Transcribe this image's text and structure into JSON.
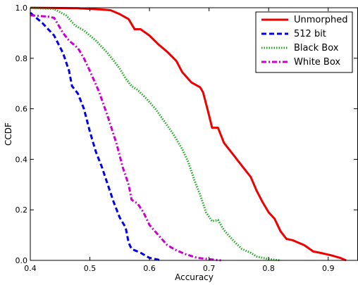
{
  "chart_data": {
    "type": "line",
    "title": "",
    "xlabel": "Accuracy",
    "ylabel": "CCDF",
    "xlim": [
      0.4,
      0.95
    ],
    "ylim": [
      0.0,
      1.0
    ],
    "xticks": [
      0.4,
      0.5,
      0.6,
      0.7,
      0.8,
      0.9
    ],
    "yticks": [
      0.0,
      0.2,
      0.4,
      0.6,
      0.8,
      1.0
    ],
    "xtick_labels": [
      "0.4",
      "0.5",
      "0.6",
      "0.7",
      "0.8",
      "0.9"
    ],
    "ytick_labels": [
      "0.0",
      "0.2",
      "0.4",
      "0.6",
      "0.8",
      "1.0"
    ],
    "grid": false,
    "legend_position": "top-right",
    "series": [
      {
        "name": "Unmorphed",
        "color": "#ee0000",
        "dash": "solid",
        "points": [
          [
            0.4,
            1.0
          ],
          [
            0.48,
            0.998
          ],
          [
            0.52,
            0.993
          ],
          [
            0.535,
            0.99
          ],
          [
            0.55,
            0.975
          ],
          [
            0.565,
            0.955
          ],
          [
            0.575,
            0.915
          ],
          [
            0.585,
            0.915
          ],
          [
            0.6,
            0.89
          ],
          [
            0.615,
            0.855
          ],
          [
            0.63,
            0.825
          ],
          [
            0.645,
            0.79
          ],
          [
            0.655,
            0.745
          ],
          [
            0.67,
            0.705
          ],
          [
            0.685,
            0.685
          ],
          [
            0.69,
            0.665
          ],
          [
            0.7,
            0.575
          ],
          [
            0.705,
            0.525
          ],
          [
            0.715,
            0.525
          ],
          [
            0.725,
            0.465
          ],
          [
            0.74,
            0.42
          ],
          [
            0.755,
            0.375
          ],
          [
            0.77,
            0.33
          ],
          [
            0.78,
            0.275
          ],
          [
            0.79,
            0.23
          ],
          [
            0.8,
            0.19
          ],
          [
            0.81,
            0.165
          ],
          [
            0.82,
            0.115
          ],
          [
            0.83,
            0.085
          ],
          [
            0.84,
            0.08
          ],
          [
            0.86,
            0.06
          ],
          [
            0.875,
            0.035
          ],
          [
            0.89,
            0.028
          ],
          [
            0.905,
            0.02
          ],
          [
            0.92,
            0.01
          ],
          [
            0.93,
            0.0
          ]
        ]
      },
      {
        "name": "512 bit",
        "color": "#0000ee",
        "dash": "dashed",
        "points": [
          [
            0.4,
            0.98
          ],
          [
            0.42,
            0.94
          ],
          [
            0.44,
            0.89
          ],
          [
            0.455,
            0.82
          ],
          [
            0.465,
            0.75
          ],
          [
            0.47,
            0.69
          ],
          [
            0.48,
            0.66
          ],
          [
            0.49,
            0.6
          ],
          [
            0.5,
            0.51
          ],
          [
            0.51,
            0.43
          ],
          [
            0.52,
            0.37
          ],
          [
            0.53,
            0.3
          ],
          [
            0.54,
            0.23
          ],
          [
            0.55,
            0.17
          ],
          [
            0.56,
            0.13
          ],
          [
            0.565,
            0.07
          ],
          [
            0.57,
            0.045
          ],
          [
            0.585,
            0.03
          ],
          [
            0.6,
            0.01
          ],
          [
            0.62,
            0.0
          ]
        ]
      },
      {
        "name": "Black Box",
        "color": "#22aa22",
        "dash": "dotted",
        "points": [
          [
            0.4,
            1.0
          ],
          [
            0.44,
            0.995
          ],
          [
            0.46,
            0.97
          ],
          [
            0.475,
            0.93
          ],
          [
            0.49,
            0.91
          ],
          [
            0.51,
            0.87
          ],
          [
            0.53,
            0.82
          ],
          [
            0.55,
            0.76
          ],
          [
            0.56,
            0.72
          ],
          [
            0.57,
            0.69
          ],
          [
            0.58,
            0.675
          ],
          [
            0.595,
            0.64
          ],
          [
            0.61,
            0.6
          ],
          [
            0.625,
            0.55
          ],
          [
            0.64,
            0.5
          ],
          [
            0.655,
            0.44
          ],
          [
            0.665,
            0.39
          ],
          [
            0.675,
            0.32
          ],
          [
            0.685,
            0.26
          ],
          [
            0.695,
            0.19
          ],
          [
            0.705,
            0.155
          ],
          [
            0.715,
            0.16
          ],
          [
            0.725,
            0.12
          ],
          [
            0.74,
            0.08
          ],
          [
            0.755,
            0.045
          ],
          [
            0.77,
            0.03
          ],
          [
            0.78,
            0.015
          ],
          [
            0.8,
            0.005
          ],
          [
            0.82,
            0.0
          ]
        ]
      },
      {
        "name": "White Box",
        "color": "#cc00cc",
        "dash": "dashdot",
        "points": [
          [
            0.4,
            0.97
          ],
          [
            0.43,
            0.965
          ],
          [
            0.44,
            0.96
          ],
          [
            0.455,
            0.9
          ],
          [
            0.465,
            0.87
          ],
          [
            0.48,
            0.84
          ],
          [
            0.49,
            0.8
          ],
          [
            0.5,
            0.75
          ],
          [
            0.515,
            0.67
          ],
          [
            0.53,
            0.57
          ],
          [
            0.545,
            0.46
          ],
          [
            0.555,
            0.37
          ],
          [
            0.565,
            0.3
          ],
          [
            0.57,
            0.24
          ],
          [
            0.58,
            0.225
          ],
          [
            0.59,
            0.19
          ],
          [
            0.6,
            0.14
          ],
          [
            0.615,
            0.1
          ],
          [
            0.63,
            0.06
          ],
          [
            0.645,
            0.04
          ],
          [
            0.66,
            0.025
          ],
          [
            0.68,
            0.01
          ],
          [
            0.7,
            0.005
          ],
          [
            0.72,
            0.0
          ]
        ]
      }
    ]
  }
}
